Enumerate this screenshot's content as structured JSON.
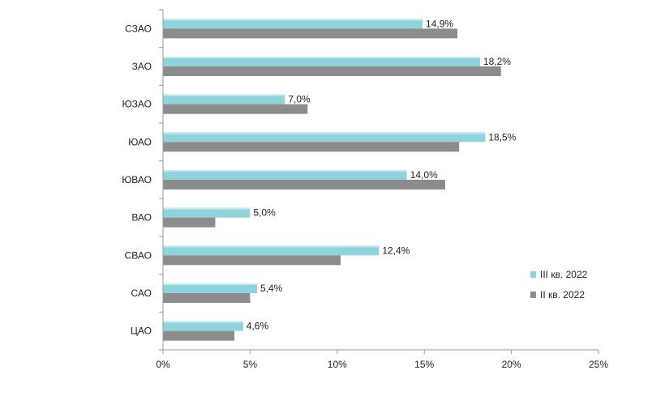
{
  "chart_data": {
    "type": "bar",
    "orientation": "horizontal",
    "categories": [
      "СЗАО",
      "ЗАО",
      "ЮЗАО",
      "ЮАО",
      "ЮВАО",
      "ВАО",
      "СВАО",
      "САО",
      "ЦАО"
    ],
    "series": [
      {
        "name": "III кв. 2022",
        "color": "#8fd3dc",
        "values": [
          14.9,
          18.2,
          7.0,
          18.5,
          14.0,
          5.0,
          12.4,
          5.4,
          4.6
        ],
        "labels": [
          "14,9%",
          "18,2%",
          "7,0%",
          "18,5%",
          "14,0%",
          "5,0%",
          "12,4%",
          "5,4%",
          "4,6%"
        ]
      },
      {
        "name": "II кв. 2022",
        "color": "#8c8c8c",
        "values": [
          16.9,
          19.4,
          8.3,
          17.0,
          16.2,
          3.0,
          10.2,
          5.0,
          4.1
        ]
      }
    ],
    "xlim": [
      0,
      25
    ],
    "xticks": [
      0,
      5,
      10,
      15,
      20,
      25
    ],
    "xtick_labels": [
      "0%",
      "5%",
      "10%",
      "15%",
      "20%",
      "25%"
    ],
    "legend_placement": "right",
    "grid": false
  }
}
